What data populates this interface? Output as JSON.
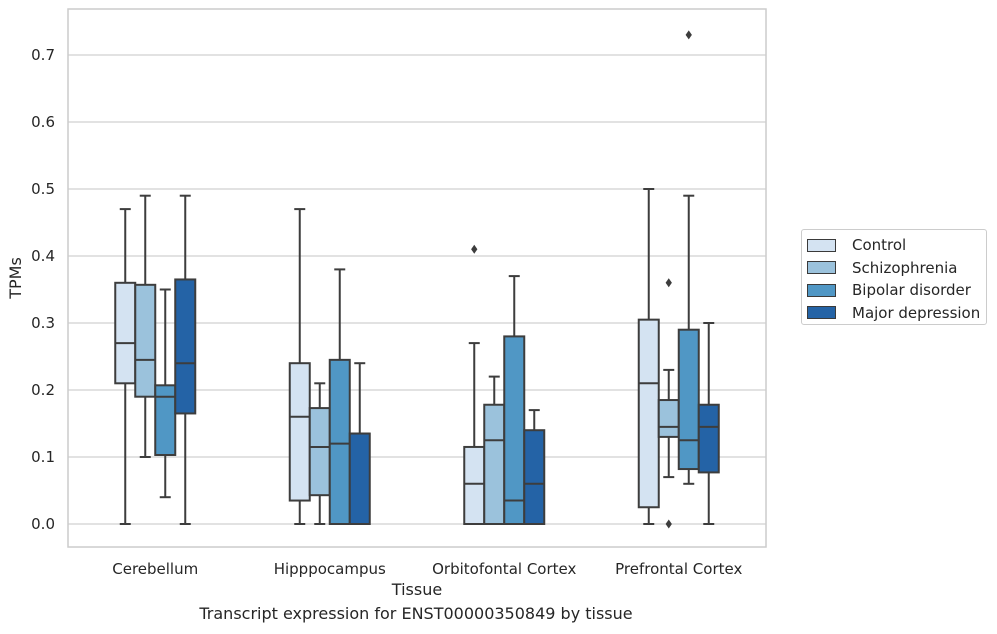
{
  "caption": "Transcript expression for ENST00000350849 by tissue",
  "chart_data": {
    "type": "box",
    "xlabel": "Tissue",
    "ylabel": "TPMs",
    "ylim": [
      -0.035,
      0.77
    ],
    "yticks": [
      0.0,
      0.1,
      0.2,
      0.3,
      0.4,
      0.5,
      0.6,
      0.7
    ],
    "ytick_labels": [
      "0.0",
      "0.1",
      "0.2",
      "0.3",
      "0.4",
      "0.5",
      "0.6",
      "0.7"
    ],
    "grid": "horizontal",
    "legend_position": "right",
    "categories": [
      "Cerebellum",
      "Hipppocampus",
      "Orbitofontal Cortex",
      "Prefrontal Cortex"
    ],
    "series": [
      {
        "name": "Control",
        "color": "#d4e3f2",
        "boxes": [
          {
            "whislo": 0.0,
            "q1": 0.21,
            "med": 0.27,
            "q3": 0.36,
            "whishi": 0.47,
            "fliers": []
          },
          {
            "whislo": 0.0,
            "q1": 0.035,
            "med": 0.16,
            "q3": 0.24,
            "whishi": 0.47,
            "fliers": []
          },
          {
            "whislo": 0.0,
            "q1": 0.0,
            "med": 0.06,
            "q3": 0.115,
            "whishi": 0.27,
            "fliers": [
              0.41
            ]
          },
          {
            "whislo": 0.0,
            "q1": 0.025,
            "med": 0.21,
            "q3": 0.305,
            "whishi": 0.5,
            "fliers": []
          }
        ]
      },
      {
        "name": "Schizophrenia",
        "color": "#9bc2dc",
        "boxes": [
          {
            "whislo": 0.1,
            "q1": 0.19,
            "med": 0.245,
            "q3": 0.357,
            "whishi": 0.49,
            "fliers": []
          },
          {
            "whislo": 0.0,
            "q1": 0.043,
            "med": 0.115,
            "q3": 0.173,
            "whishi": 0.21,
            "fliers": []
          },
          {
            "whislo": 0.0,
            "q1": 0.0,
            "med": 0.125,
            "q3": 0.178,
            "whishi": 0.22,
            "fliers": []
          },
          {
            "whislo": 0.07,
            "q1": 0.13,
            "med": 0.145,
            "q3": 0.185,
            "whishi": 0.23,
            "fliers": [
              0.36,
              0.0
            ]
          }
        ]
      },
      {
        "name": "Bipolar disorder",
        "color": "#5097c5",
        "boxes": [
          {
            "whislo": 0.04,
            "q1": 0.103,
            "med": 0.19,
            "q3": 0.207,
            "whishi": 0.35,
            "fliers": []
          },
          {
            "whislo": 0.0,
            "q1": 0.0,
            "med": 0.12,
            "q3": 0.245,
            "whishi": 0.38,
            "fliers": []
          },
          {
            "whislo": 0.0,
            "q1": 0.0,
            "med": 0.035,
            "q3": 0.28,
            "whishi": 0.37,
            "fliers": []
          },
          {
            "whislo": 0.06,
            "q1": 0.082,
            "med": 0.125,
            "q3": 0.29,
            "whishi": 0.49,
            "fliers": [
              0.73
            ]
          }
        ]
      },
      {
        "name": "Major depression",
        "color": "#2463a6",
        "boxes": [
          {
            "whislo": 0.0,
            "q1": 0.165,
            "med": 0.24,
            "q3": 0.365,
            "whishi": 0.49,
            "fliers": []
          },
          {
            "whislo": 0.0,
            "q1": 0.0,
            "med": 0.135,
            "q3": 0.135,
            "whishi": 0.24,
            "fliers": []
          },
          {
            "whislo": 0.0,
            "q1": 0.0,
            "med": 0.06,
            "q3": 0.14,
            "whishi": 0.17,
            "fliers": []
          },
          {
            "whislo": 0.0,
            "q1": 0.077,
            "med": 0.145,
            "q3": 0.178,
            "whishi": 0.3,
            "fliers": []
          }
        ]
      }
    ]
  }
}
